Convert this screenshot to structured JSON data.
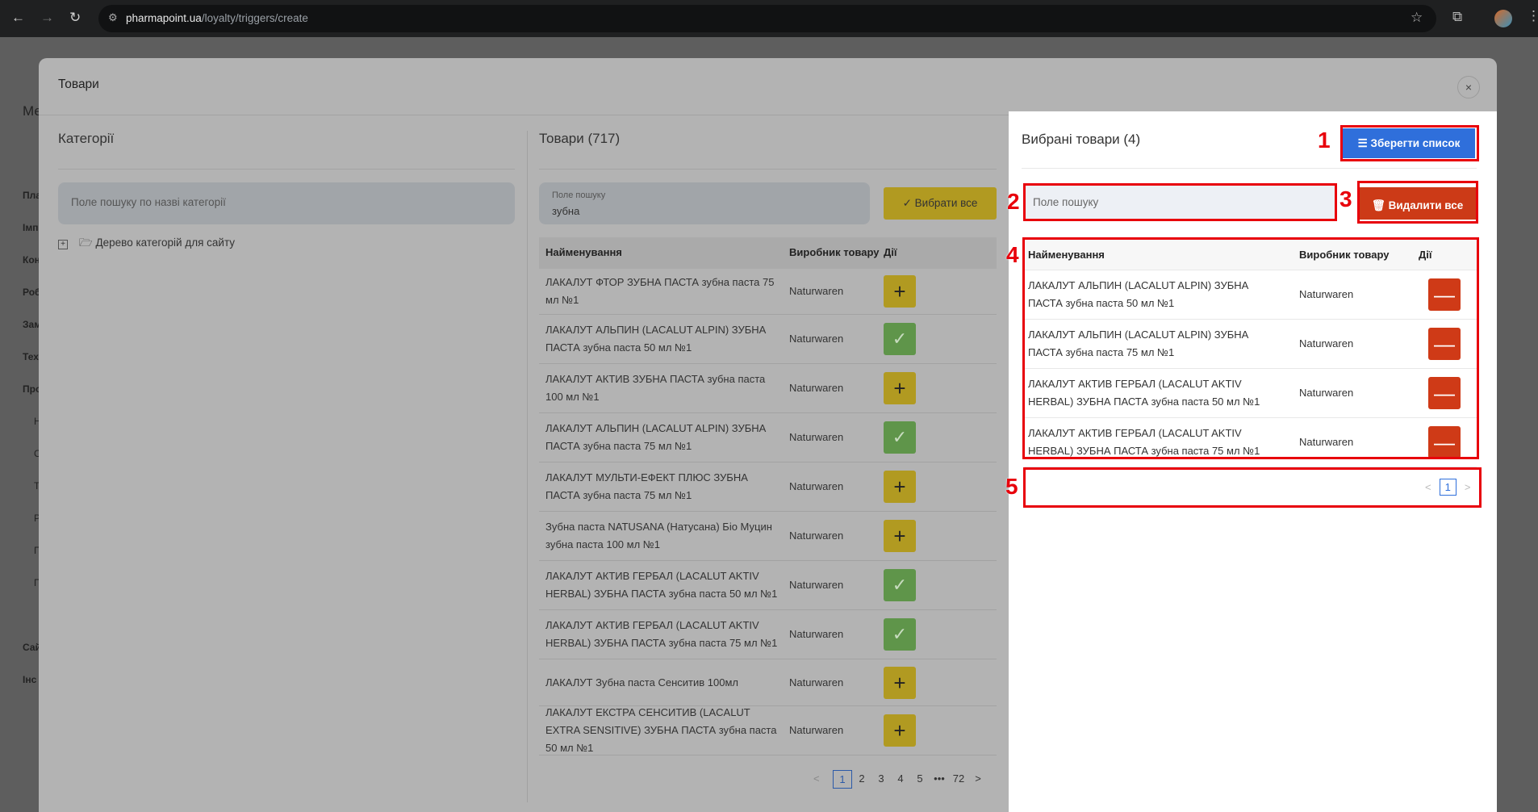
{
  "browser": {
    "url_host": "pharmapoint.ua",
    "url_path": "/loyalty/triggers/create"
  },
  "sidebar": {
    "items": [
      "Ме",
      "Пла",
      "Імп",
      "Кон",
      "Роб",
      "Зам",
      "Тех",
      "Про",
      "Н",
      "С",
      "Т",
      "Р",
      "П",
      "П",
      "Сай",
      "Інс"
    ]
  },
  "modal": {
    "title": "Товари",
    "close": "×"
  },
  "categories": {
    "title": "Категорії",
    "search_placeholder": "Поле пошуку по назві категорії",
    "tree_item": "Дерево категорій для сайту"
  },
  "products": {
    "title": "Товари (717)",
    "search_label": "Поле пошуку",
    "search_value": "зубна",
    "select_all": "Вибрати все",
    "columns": [
      "Найменування",
      "Виробник товару",
      "Дії"
    ],
    "rows": [
      {
        "name": "ЛАКАЛУТ ФТОР ЗУБНА ПАСТА зубна паста 75 мл №1",
        "maker": "Naturwaren",
        "selected": false
      },
      {
        "name": "ЛАКАЛУТ АЛЬПИН (LACALUT ALPIN) ЗУБНА ПАСТА зубна паста 50 мл №1",
        "maker": "Naturwaren",
        "selected": true
      },
      {
        "name": "ЛАКАЛУТ АКТИВ ЗУБНА ПАСТА зубна паста 100 мл №1",
        "maker": "Naturwaren",
        "selected": false
      },
      {
        "name": "ЛАКАЛУТ АЛЬПИН (LACALUT ALPIN) ЗУБНА ПАСТА зубна паста 75 мл №1",
        "maker": "Naturwaren",
        "selected": true
      },
      {
        "name": "ЛАКАЛУТ МУЛЬТИ-ЕФЕКТ ПЛЮС ЗУБНА ПАСТА зубна паста 75 мл №1",
        "maker": "Naturwaren",
        "selected": false
      },
      {
        "name": "Зубна паста NATUSANA (Натусана) Біо Муцин зубна паста 100 мл №1",
        "maker": "Naturwaren",
        "selected": false
      },
      {
        "name": "ЛАКАЛУТ АКТИВ ГЕРБАЛ (LACALUT AKTIV HERBAL) ЗУБНА ПАСТА зубна паста 50 мл №1",
        "maker": "Naturwaren",
        "selected": true
      },
      {
        "name": "ЛАКАЛУТ АКТИВ ГЕРБАЛ (LACALUT AKTIV HERBAL) ЗУБНА ПАСТА зубна паста 75 мл №1",
        "maker": "Naturwaren",
        "selected": true
      },
      {
        "name": "ЛАКАЛУТ Зубна паста Сенситив 100мл",
        "maker": "Naturwaren",
        "selected": false
      },
      {
        "name": "ЛАКАЛУТ ЕКСТРА СЕНСИТИВ (LACALUT EXTRA SENSITIVE) ЗУБНА ПАСТА зубна паста 50 мл №1",
        "maker": "Naturwaren",
        "selected": false
      }
    ],
    "pagination": {
      "prev": "<",
      "pages": [
        "1",
        "2",
        "3",
        "4",
        "5",
        "•••",
        "72"
      ],
      "current": "1",
      "next": ">"
    }
  },
  "selected": {
    "title": "Вибрані товари (4)",
    "save": "Зберегти список",
    "search_placeholder": "Поле пошуку",
    "delete_all": "Видалити все",
    "columns": [
      "Найменування",
      "Виробник товару",
      "Дії"
    ],
    "rows": [
      {
        "name": "ЛАКАЛУТ АЛЬПИН (LACALUT ALPIN) ЗУБНА ПАСТА зубна паста 50 мл №1",
        "maker": "Naturwaren"
      },
      {
        "name": "ЛАКАЛУТ АЛЬПИН (LACALUT ALPIN) ЗУБНА ПАСТА зубна паста 75 мл №1",
        "maker": "Naturwaren"
      },
      {
        "name": "ЛАКАЛУТ АКТИВ ГЕРБАЛ (LACALUT AKTIV HERBAL) ЗУБНА ПАСТА зубна паста 50 мл №1",
        "maker": "Naturwaren"
      },
      {
        "name": "ЛАКАЛУТ АКТИВ ГЕРБАЛ (LACALUT AKTIV HERBAL) ЗУБНА ПАСТА зубна паста 75 мл №1",
        "maker": "Naturwaren"
      }
    ],
    "pagination": {
      "prev": "<",
      "current": "1",
      "next": ">"
    }
  },
  "annotations": [
    "1",
    "2",
    "3",
    "4",
    "5"
  ],
  "colors": {
    "save": "#2f6fdb",
    "delete": "#cc3a17",
    "add": "#b19a21",
    "added": "#5f954a",
    "annotation": "#e8000b"
  }
}
